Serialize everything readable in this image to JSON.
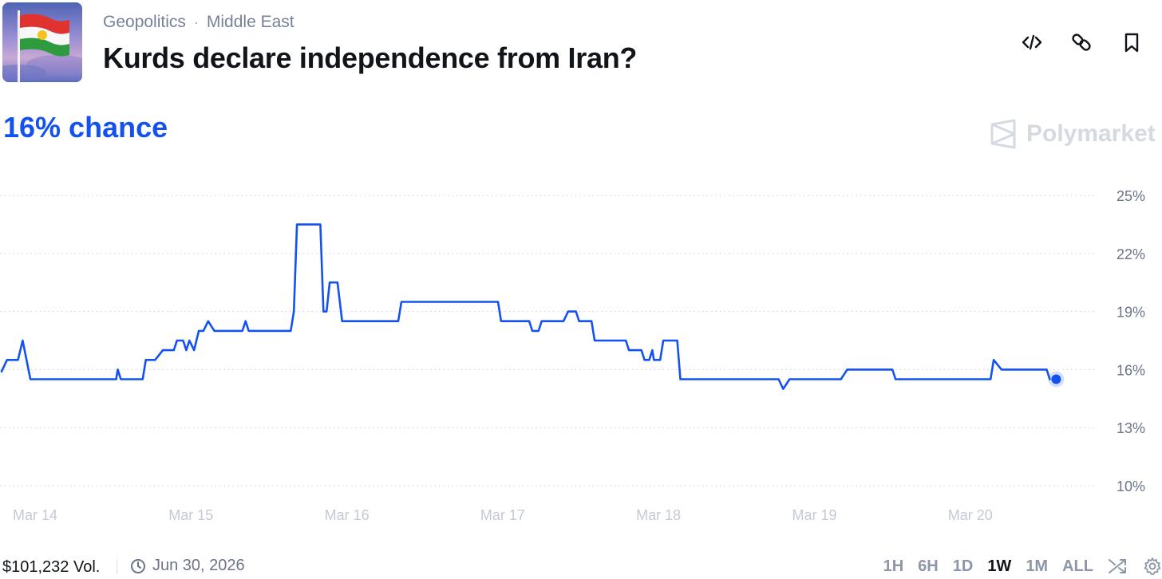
{
  "header": {
    "category": "Geopolitics",
    "subcategory": "Middle East",
    "breadcrumb_separator": "·",
    "title": "Kurds declare independence from Iran?",
    "actions": [
      "embed-code-icon",
      "link-icon",
      "bookmark-icon"
    ]
  },
  "summary": {
    "chance_text": "16% chance",
    "accent_color": "#1452f0"
  },
  "brand": {
    "name": "Polymarket"
  },
  "chart_data": {
    "type": "line",
    "title": "",
    "xlabel": "",
    "ylabel": "",
    "x_ticks": [
      "Mar 14",
      "Mar 15",
      "Mar 16",
      "Mar 17",
      "Mar 18",
      "Mar 19",
      "Mar 20"
    ],
    "y_ticks": [
      "25%",
      "22%",
      "19%",
      "16%",
      "13%",
      "10%"
    ],
    "ylim": [
      10,
      25
    ],
    "xlim": [
      0,
      7
    ],
    "grid": true,
    "x_unit": "days since Mar 14",
    "series": [
      {
        "color": "#1452f0",
        "points": [
          [
            0.0,
            15.9
          ],
          [
            0.05,
            16.5
          ],
          [
            0.12,
            16.5
          ],
          [
            0.15,
            17.5
          ],
          [
            0.2,
            15.5
          ],
          [
            0.75,
            15.5
          ],
          [
            0.76,
            16.0
          ],
          [
            0.78,
            15.5
          ],
          [
            0.92,
            15.5
          ],
          [
            0.94,
            16.5
          ],
          [
            1.0,
            16.5
          ],
          [
            1.05,
            17.0
          ],
          [
            1.12,
            17.0
          ],
          [
            1.14,
            17.5
          ],
          [
            1.18,
            17.5
          ],
          [
            1.2,
            17.0
          ],
          [
            1.22,
            17.5
          ],
          [
            1.25,
            17.0
          ],
          [
            1.28,
            18.0
          ],
          [
            1.31,
            18.0
          ],
          [
            1.34,
            18.5
          ],
          [
            1.38,
            18.0
          ],
          [
            1.56,
            18.0
          ],
          [
            1.58,
            18.5
          ],
          [
            1.6,
            18.0
          ],
          [
            1.87,
            18.0
          ],
          [
            1.89,
            19.0
          ],
          [
            1.91,
            23.5
          ],
          [
            2.06,
            23.5
          ],
          [
            2.08,
            19.0
          ],
          [
            2.1,
            19.0
          ],
          [
            2.12,
            20.5
          ],
          [
            2.17,
            20.5
          ],
          [
            2.2,
            18.5
          ],
          [
            2.56,
            18.5
          ],
          [
            2.58,
            19.5
          ],
          [
            3.2,
            19.5
          ],
          [
            3.22,
            18.5
          ],
          [
            3.4,
            18.5
          ],
          [
            3.42,
            18.0
          ],
          [
            3.46,
            18.0
          ],
          [
            3.48,
            18.5
          ],
          [
            3.62,
            18.5
          ],
          [
            3.65,
            19.0
          ],
          [
            3.7,
            19.0
          ],
          [
            3.72,
            18.5
          ],
          [
            3.8,
            18.5
          ],
          [
            3.82,
            17.5
          ],
          [
            4.02,
            17.5
          ],
          [
            4.04,
            17.0
          ],
          [
            4.12,
            17.0
          ],
          [
            4.14,
            16.5
          ],
          [
            4.17,
            16.5
          ],
          [
            4.19,
            17.0
          ],
          [
            4.2,
            16.5
          ],
          [
            4.24,
            16.5
          ],
          [
            4.26,
            17.5
          ],
          [
            4.35,
            17.5
          ],
          [
            4.37,
            15.5
          ],
          [
            5.0,
            15.5
          ],
          [
            5.03,
            15.0
          ],
          [
            5.07,
            15.5
          ],
          [
            5.4,
            15.5
          ],
          [
            5.44,
            16.0
          ],
          [
            5.73,
            16.0
          ],
          [
            5.75,
            15.5
          ],
          [
            6.36,
            15.5
          ],
          [
            6.38,
            16.5
          ],
          [
            6.43,
            16.0
          ],
          [
            6.72,
            16.0
          ],
          [
            6.74,
            15.5
          ]
        ]
      }
    ],
    "last_point_marker": true
  },
  "footer": {
    "volume": "$101,232 Vol.",
    "end_date": "Jun 30, 2026",
    "ranges": [
      {
        "label": "1H",
        "active": false
      },
      {
        "label": "6H",
        "active": false
      },
      {
        "label": "1D",
        "active": false
      },
      {
        "label": "1W",
        "active": true
      },
      {
        "label": "1M",
        "active": false
      },
      {
        "label": "ALL",
        "active": false
      }
    ]
  }
}
